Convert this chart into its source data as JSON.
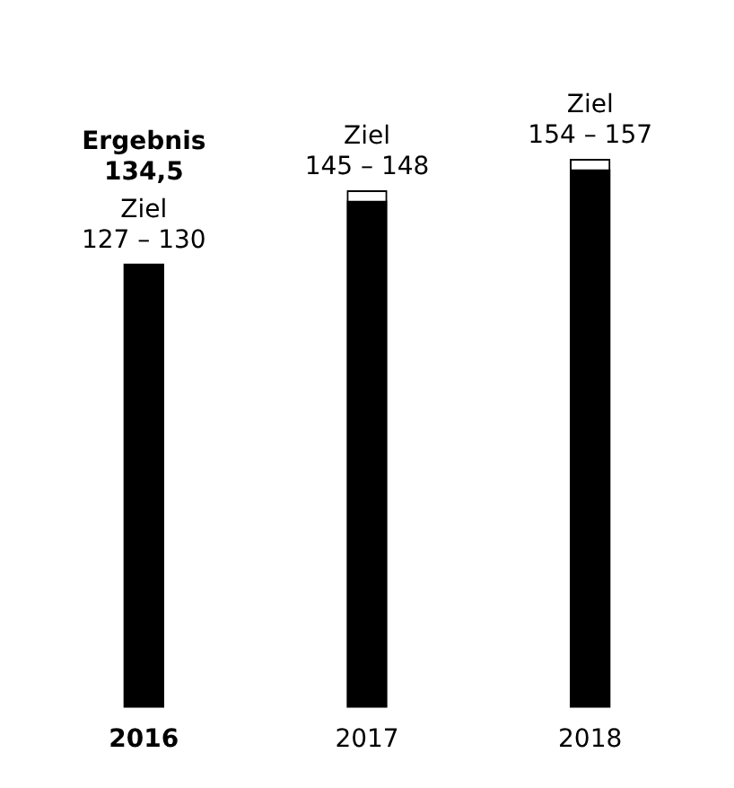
{
  "chart_data": {
    "type": "bar",
    "stacked": true,
    "categories": [
      "2016",
      "2017",
      "2018"
    ],
    "series": [
      {
        "color": "#000000",
        "values": [
          127,
          145,
          154
        ],
        "value_labels": [
          "Ziel\n127 – 130",
          "Ziel\n145 – 148",
          "Ziel\n154 – 157"
        ]
      },
      {
        "color": "#ffffff",
        "values": [
          null,
          3,
          3
        ]
      }
    ],
    "tick_labels": "x",
    "annotations": [
      "Ergebnis\n134,5"
    ],
    "grid": false,
    "legend": false
  }
}
